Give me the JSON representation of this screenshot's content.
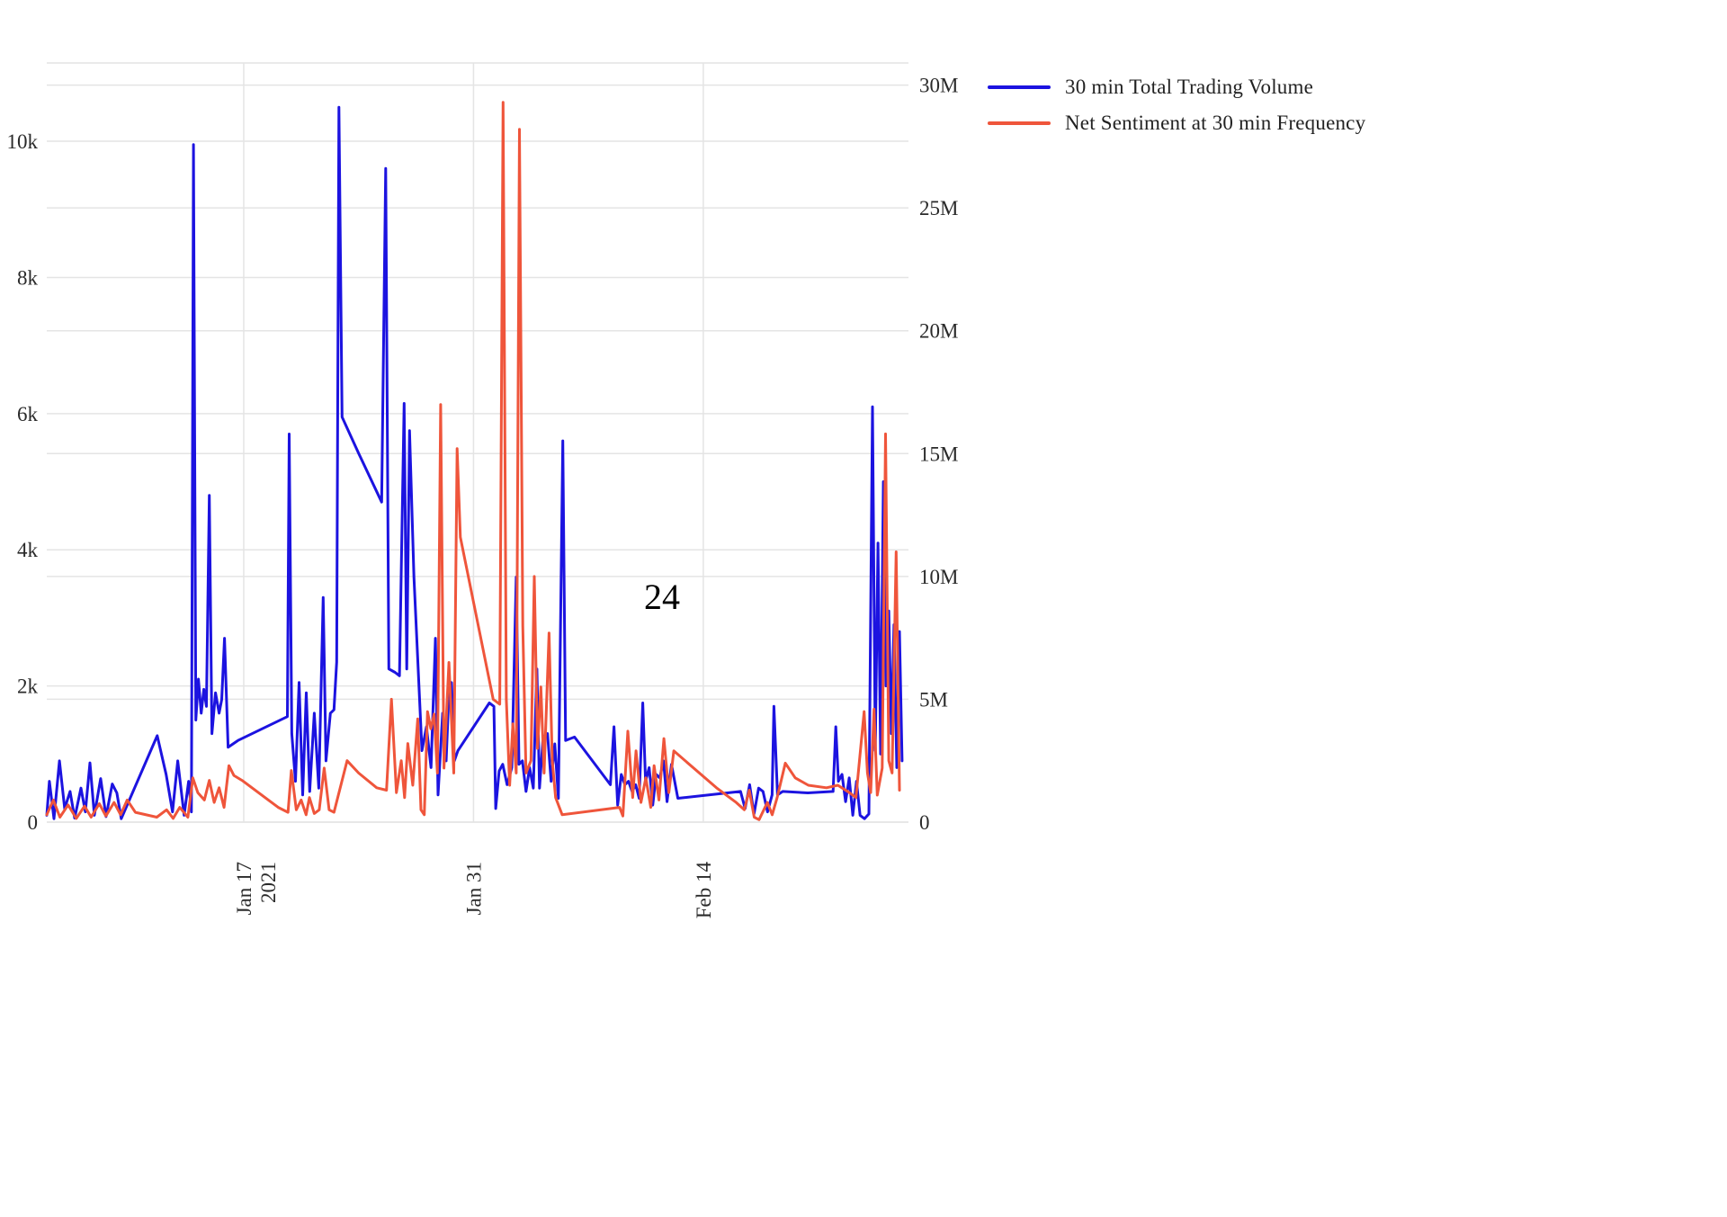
{
  "page": {
    "background": "#ffffff"
  },
  "annotation": {
    "text": "24"
  },
  "legend": {
    "items": [
      {
        "label": "30 min Total Trading Volume",
        "color": "#1c13e0"
      },
      {
        "label": "Net Sentiment at 30 min Frequency",
        "color": "#ef553b"
      }
    ]
  },
  "chart_data": {
    "type": "line",
    "title": "",
    "grid": true,
    "legend_position": "top-right",
    "colors": {
      "grid": "#e4e4e4",
      "tick_text": "#2a2a2a",
      "plot_border_top": "#e4e4e4"
    },
    "x_axis": {
      "unit": "days since 2021-01-01",
      "range": [
        5,
        57.5
      ],
      "ticks": [
        {
          "value": 17,
          "label": "Jan 17",
          "sublabel": "2021"
        },
        {
          "value": 31,
          "label": "Jan 31",
          "sublabel": ""
        },
        {
          "value": 45,
          "label": "Feb 14",
          "sublabel": ""
        }
      ]
    },
    "y_axis_left": {
      "title": "",
      "range": [
        0,
        11150
      ],
      "ticks": [
        0,
        2000,
        4000,
        6000,
        8000,
        10000
      ],
      "tick_labels": [
        "0",
        "2k",
        "4k",
        "6k",
        "8k",
        "10k"
      ]
    },
    "y_axis_right": {
      "title": "",
      "range": [
        0,
        30900000
      ],
      "ticks": [
        0,
        5000000,
        10000000,
        15000000,
        20000000,
        25000000,
        30000000
      ],
      "tick_labels": [
        "0",
        "5M",
        "10M",
        "15M",
        "20M",
        "25M",
        "30M"
      ]
    },
    "series": [
      {
        "name": "30 min Total Trading Volume",
        "color": "#1c13e0",
        "axis": "left",
        "points": [
          [
            5.0,
            100
          ],
          [
            5.16,
            600
          ],
          [
            5.44,
            50
          ],
          [
            5.77,
            900
          ],
          [
            6.09,
            200
          ],
          [
            6.42,
            450
          ],
          [
            6.7,
            60
          ],
          [
            7.08,
            500
          ],
          [
            7.35,
            150
          ],
          [
            7.63,
            870
          ],
          [
            7.9,
            100
          ],
          [
            8.28,
            640
          ],
          [
            8.61,
            80
          ],
          [
            8.99,
            560
          ],
          [
            9.27,
            430
          ],
          [
            9.54,
            50
          ],
          [
            11.73,
            1270
          ],
          [
            12.27,
            700
          ],
          [
            12.66,
            150
          ],
          [
            12.98,
            900
          ],
          [
            13.37,
            100
          ],
          [
            13.64,
            600
          ],
          [
            13.81,
            150
          ],
          [
            13.94,
            9950
          ],
          [
            14.08,
            1500
          ],
          [
            14.24,
            2100
          ],
          [
            14.41,
            1600
          ],
          [
            14.57,
            1950
          ],
          [
            14.73,
            1700
          ],
          [
            14.9,
            4800
          ],
          [
            15.06,
            1300
          ],
          [
            15.28,
            1900
          ],
          [
            15.5,
            1600
          ],
          [
            15.66,
            1800
          ],
          [
            15.83,
            2700
          ],
          [
            16.05,
            1100
          ],
          [
            16.65,
            1200
          ],
          [
            19.66,
            1550
          ],
          [
            19.77,
            5700
          ],
          [
            19.93,
            1300
          ],
          [
            20.15,
            600
          ],
          [
            20.37,
            2050
          ],
          [
            20.59,
            400
          ],
          [
            20.81,
            1900
          ],
          [
            21.02,
            450
          ],
          [
            21.3,
            1600
          ],
          [
            21.57,
            500
          ],
          [
            21.84,
            3300
          ],
          [
            22.01,
            900
          ],
          [
            22.28,
            1600
          ],
          [
            22.5,
            1650
          ],
          [
            22.66,
            2350
          ],
          [
            22.8,
            10500
          ],
          [
            22.99,
            5950
          ],
          [
            24.03,
            5400
          ],
          [
            25.4,
            4700
          ],
          [
            25.65,
            9600
          ],
          [
            25.84,
            2250
          ],
          [
            26.22,
            2200
          ],
          [
            26.49,
            2150
          ],
          [
            26.77,
            6150
          ],
          [
            26.93,
            2250
          ],
          [
            27.1,
            5750
          ],
          [
            27.37,
            3600
          ],
          [
            27.86,
            1050
          ],
          [
            28.13,
            1400
          ],
          [
            28.41,
            800
          ],
          [
            28.68,
            2700
          ],
          [
            28.84,
            400
          ],
          [
            29.12,
            1600
          ],
          [
            29.33,
            900
          ],
          [
            29.5,
            1900
          ],
          [
            29.66,
            2050
          ],
          [
            29.83,
            900
          ],
          [
            30.05,
            1050
          ],
          [
            31.96,
            1750
          ],
          [
            32.24,
            1700
          ],
          [
            32.35,
            200
          ],
          [
            32.56,
            750
          ],
          [
            32.78,
            850
          ],
          [
            33.05,
            550
          ],
          [
            33.33,
            800
          ],
          [
            33.6,
            3600
          ],
          [
            33.77,
            850
          ],
          [
            33.98,
            900
          ],
          [
            34.2,
            450
          ],
          [
            34.42,
            800
          ],
          [
            34.64,
            500
          ],
          [
            34.86,
            2250
          ],
          [
            35.02,
            500
          ],
          [
            35.24,
            1250
          ],
          [
            35.51,
            1300
          ],
          [
            35.73,
            600
          ],
          [
            35.95,
            1150
          ],
          [
            36.17,
            350
          ],
          [
            36.44,
            5600
          ],
          [
            36.61,
            1200
          ],
          [
            37.15,
            1250
          ],
          [
            39.34,
            550
          ],
          [
            39.56,
            1400
          ],
          [
            39.78,
            250
          ],
          [
            40.0,
            700
          ],
          [
            40.22,
            550
          ],
          [
            40.44,
            600
          ],
          [
            40.66,
            450
          ],
          [
            40.88,
            550
          ],
          [
            41.09,
            350
          ],
          [
            41.31,
            1750
          ],
          [
            41.48,
            600
          ],
          [
            41.7,
            800
          ],
          [
            41.92,
            250
          ],
          [
            42.13,
            700
          ],
          [
            42.35,
            650
          ],
          [
            42.57,
            900
          ],
          [
            42.79,
            300
          ],
          [
            43.06,
            850
          ],
          [
            43.45,
            350
          ],
          [
            47.27,
            450
          ],
          [
            47.55,
            200
          ],
          [
            47.82,
            550
          ],
          [
            48.09,
            120
          ],
          [
            48.37,
            500
          ],
          [
            48.64,
            450
          ],
          [
            48.91,
            150
          ],
          [
            49.19,
            400
          ],
          [
            49.3,
            1700
          ],
          [
            49.52,
            400
          ],
          [
            49.84,
            450
          ],
          [
            51.37,
            430
          ],
          [
            52.91,
            450
          ],
          [
            53.07,
            1400
          ],
          [
            53.23,
            600
          ],
          [
            53.45,
            700
          ],
          [
            53.67,
            300
          ],
          [
            53.89,
            650
          ],
          [
            54.11,
            100
          ],
          [
            54.33,
            600
          ],
          [
            54.55,
            100
          ],
          [
            54.82,
            50
          ],
          [
            55.09,
            120
          ],
          [
            55.31,
            6100
          ],
          [
            55.48,
            1050
          ],
          [
            55.64,
            4100
          ],
          [
            55.8,
            1000
          ],
          [
            55.97,
            5000
          ],
          [
            56.13,
            2000
          ],
          [
            56.3,
            3100
          ],
          [
            56.46,
            1300
          ],
          [
            56.62,
            2900
          ],
          [
            56.79,
            800
          ],
          [
            56.95,
            2800
          ],
          [
            57.11,
            900
          ]
        ]
      },
      {
        "name": "Net Sentiment at 30 min Frequency",
        "color": "#ef553b",
        "axis": "right",
        "points": [
          [
            5.0,
            300000
          ],
          [
            5.4,
            900000
          ],
          [
            5.8,
            200000
          ],
          [
            6.3,
            700000
          ],
          [
            6.8,
            150000
          ],
          [
            7.3,
            650000
          ],
          [
            7.7,
            200000
          ],
          [
            8.2,
            750000
          ],
          [
            8.6,
            250000
          ],
          [
            9.1,
            800000
          ],
          [
            9.5,
            300000
          ],
          [
            9.9,
            900000
          ],
          [
            10.4,
            400000
          ],
          [
            11.7,
            200000
          ],
          [
            12.3,
            500000
          ],
          [
            12.7,
            150000
          ],
          [
            13.1,
            600000
          ],
          [
            13.6,
            200000
          ],
          [
            13.9,
            1800000
          ],
          [
            14.2,
            1200000
          ],
          [
            14.6,
            900000
          ],
          [
            14.9,
            1700000
          ],
          [
            15.2,
            800000
          ],
          [
            15.5,
            1400000
          ],
          [
            15.8,
            600000
          ],
          [
            16.1,
            2300000
          ],
          [
            16.4,
            1900000
          ],
          [
            16.9,
            1700000
          ],
          [
            19.1,
            600000
          ],
          [
            19.7,
            400000
          ],
          [
            19.9,
            2100000
          ],
          [
            20.2,
            500000
          ],
          [
            20.5,
            900000
          ],
          [
            20.8,
            300000
          ],
          [
            21.0,
            1000000
          ],
          [
            21.3,
            350000
          ],
          [
            21.6,
            500000
          ],
          [
            21.9,
            2200000
          ],
          [
            22.2,
            500000
          ],
          [
            22.5,
            400000
          ],
          [
            23.3,
            2500000
          ],
          [
            24.0,
            2000000
          ],
          [
            25.1,
            1400000
          ],
          [
            25.7,
            1300000
          ],
          [
            26.0,
            5000000
          ],
          [
            26.3,
            1200000
          ],
          [
            26.6,
            2500000
          ],
          [
            26.8,
            1000000
          ],
          [
            27.0,
            3200000
          ],
          [
            27.3,
            1500000
          ],
          [
            27.6,
            4200000
          ],
          [
            27.8,
            500000
          ],
          [
            28.0,
            300000
          ],
          [
            28.2,
            4500000
          ],
          [
            28.4,
            3800000
          ],
          [
            28.6,
            4400000
          ],
          [
            28.8,
            2000000
          ],
          [
            29.0,
            17000000
          ],
          [
            29.2,
            2200000
          ],
          [
            29.5,
            6500000
          ],
          [
            29.8,
            2000000
          ],
          [
            30.0,
            15200000
          ],
          [
            30.2,
            11600000
          ],
          [
            32.2,
            5000000
          ],
          [
            32.6,
            4800000
          ],
          [
            32.8,
            29300000
          ],
          [
            33.0,
            5000000
          ],
          [
            33.2,
            1500000
          ],
          [
            33.4,
            4000000
          ],
          [
            33.6,
            2000000
          ],
          [
            33.8,
            28200000
          ],
          [
            34.0,
            8000000
          ],
          [
            34.2,
            2000000
          ],
          [
            34.5,
            2500000
          ],
          [
            34.7,
            10000000
          ],
          [
            34.9,
            3000000
          ],
          [
            35.1,
            5500000
          ],
          [
            35.3,
            2000000
          ],
          [
            35.6,
            7700000
          ],
          [
            35.8,
            2500000
          ],
          [
            36.0,
            1000000
          ],
          [
            36.4,
            300000
          ],
          [
            39.9,
            600000
          ],
          [
            40.1,
            250000
          ],
          [
            40.4,
            3700000
          ],
          [
            40.7,
            1000000
          ],
          [
            40.9,
            2900000
          ],
          [
            41.2,
            800000
          ],
          [
            41.5,
            1800000
          ],
          [
            41.8,
            600000
          ],
          [
            42.0,
            2300000
          ],
          [
            42.3,
            900000
          ],
          [
            42.6,
            3400000
          ],
          [
            42.9,
            1200000
          ],
          [
            43.2,
            2900000
          ],
          [
            45.8,
            1400000
          ],
          [
            47.0,
            800000
          ],
          [
            47.5,
            500000
          ],
          [
            47.8,
            1300000
          ],
          [
            48.1,
            200000
          ],
          [
            48.4,
            100000
          ],
          [
            48.9,
            800000
          ],
          [
            49.2,
            300000
          ],
          [
            49.5,
            1000000
          ],
          [
            50.0,
            2400000
          ],
          [
            50.6,
            1800000
          ],
          [
            51.4,
            1500000
          ],
          [
            52.5,
            1400000
          ],
          [
            53.2,
            1500000
          ],
          [
            53.9,
            1200000
          ],
          [
            54.3,
            1000000
          ],
          [
            54.8,
            4500000
          ],
          [
            55.0,
            2000000
          ],
          [
            55.2,
            1200000
          ],
          [
            55.4,
            4600000
          ],
          [
            55.6,
            1100000
          ],
          [
            55.9,
            2200000
          ],
          [
            56.1,
            15800000
          ],
          [
            56.3,
            2500000
          ],
          [
            56.5,
            2000000
          ],
          [
            56.75,
            11000000
          ],
          [
            56.95,
            1300000
          ]
        ]
      }
    ]
  }
}
